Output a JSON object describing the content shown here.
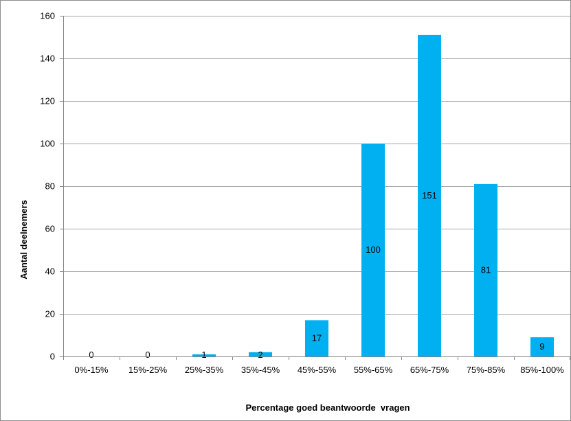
{
  "chart_data": {
    "type": "bar",
    "title": "",
    "xlabel": "Percentage goed beantwoorde  vragen",
    "ylabel": "Aantal deelnemers",
    "categories": [
      "0%-15%",
      "15%-25%",
      "25%-35%",
      "35%-45%",
      "45%-55%",
      "55%-65%",
      "65%-75%",
      "75%-85%",
      "85%-100%"
    ],
    "values": [
      0,
      0,
      1,
      2,
      17,
      100,
      151,
      81,
      9
    ],
    "data_labels": [
      "0",
      "0",
      "1",
      "2",
      "17",
      "100",
      "151",
      "81",
      "9"
    ],
    "ylim": [
      0,
      160
    ],
    "yticks": [
      0,
      20,
      40,
      60,
      80,
      100,
      120,
      140,
      160
    ],
    "ytick_labels": [
      "0",
      "20",
      "40",
      "60",
      "80",
      "100",
      "120",
      "140",
      "160"
    ],
    "grid": "horizontal",
    "legend": "none",
    "bar_color": "#00b0f0",
    "gridline_color": "#a6a6a6"
  }
}
